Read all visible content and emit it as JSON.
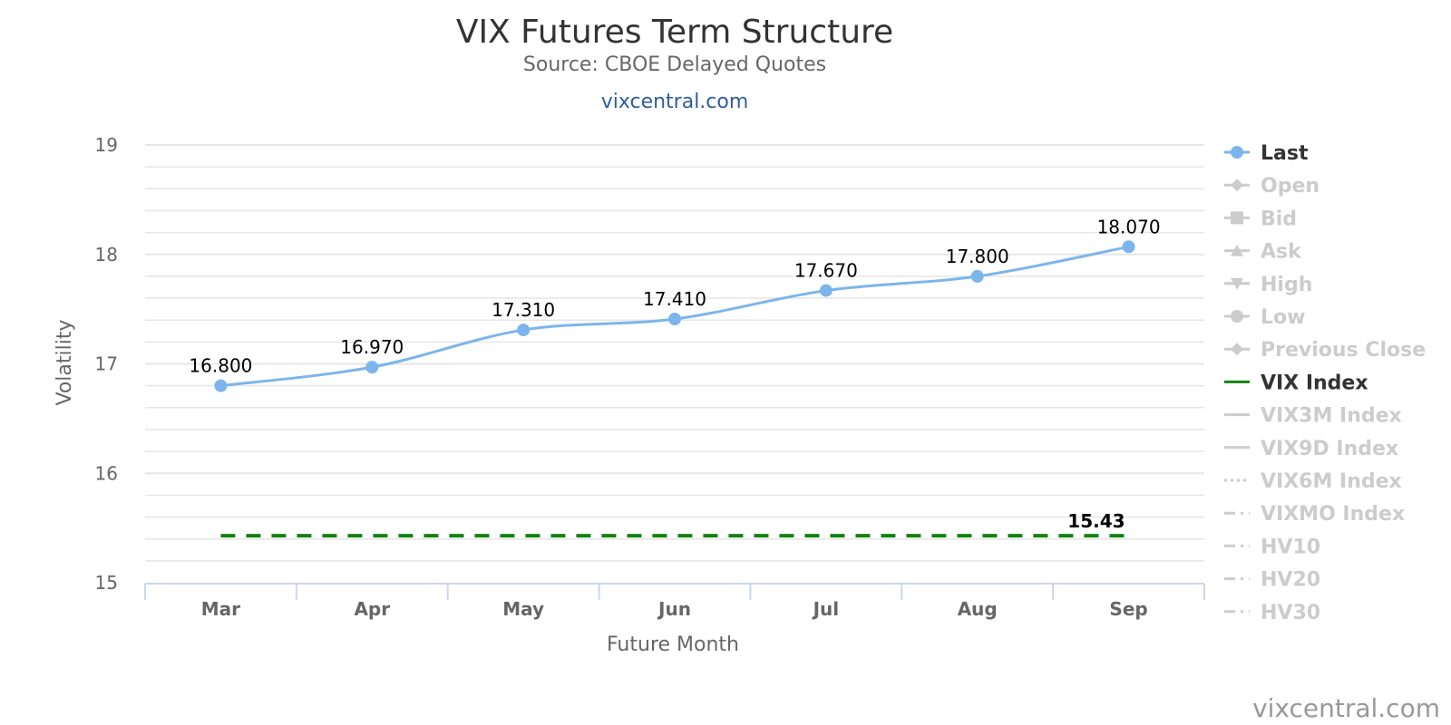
{
  "header": {
    "title": "VIX Futures Term Structure",
    "subtitle": "Source: CBOE Delayed Quotes",
    "site_link": "vixcentral.com"
  },
  "credit": "vixcentral.com",
  "chart_data": {
    "type": "line",
    "title": "VIX Futures Term Structure",
    "subtitle": "Source: CBOE Delayed Quotes",
    "xlabel": "Future Month",
    "ylabel": "Volatility",
    "categories": [
      "Mar",
      "Apr",
      "May",
      "Jun",
      "Jul",
      "Aug",
      "Sep"
    ],
    "ylim": [
      15,
      19
    ],
    "yticks": [
      15,
      16,
      17,
      18,
      19
    ],
    "grid": true,
    "legend_position": "right",
    "series": [
      {
        "name": "Last",
        "values": [
          16.8,
          16.97,
          17.31,
          17.41,
          17.67,
          17.8,
          18.07
        ],
        "labels": [
          "16.800",
          "16.970",
          "17.310",
          "17.410",
          "17.670",
          "17.800",
          "18.070"
        ],
        "color": "#7cb5ec",
        "smooth": true,
        "markers": true
      },
      {
        "name": "VIX Index",
        "value": 15.43,
        "label": "15.43",
        "color": "#128212",
        "dashed": true
      }
    ],
    "legend": [
      {
        "name": "Last",
        "symbol": "circle",
        "enabled": true,
        "color": "#7cb5ec"
      },
      {
        "name": "Open",
        "symbol": "diamond",
        "enabled": false
      },
      {
        "name": "Bid",
        "symbol": "square",
        "enabled": false
      },
      {
        "name": "Ask",
        "symbol": "triangle",
        "enabled": false
      },
      {
        "name": "High",
        "symbol": "triangle-down",
        "enabled": false
      },
      {
        "name": "Low",
        "symbol": "circle",
        "enabled": false
      },
      {
        "name": "Previous Close",
        "symbol": "diamond",
        "enabled": false
      },
      {
        "name": "VIX Index",
        "symbol": "line",
        "enabled": true,
        "color": "#128212"
      },
      {
        "name": "VIX3M Index",
        "symbol": "line",
        "enabled": false
      },
      {
        "name": "VIX9D Index",
        "symbol": "line",
        "enabled": false
      },
      {
        "name": "VIX6M Index",
        "symbol": "dotted",
        "enabled": false
      },
      {
        "name": "VIXMO Index",
        "symbol": "dashdot",
        "enabled": false
      },
      {
        "name": "HV10",
        "symbol": "dashdot",
        "enabled": false
      },
      {
        "name": "HV20",
        "symbol": "dashdot",
        "enabled": false
      },
      {
        "name": "HV30",
        "symbol": "dashdot",
        "enabled": false
      }
    ],
    "colors": {
      "disabled": "#cccccc",
      "legend_enabled_text": "#333333",
      "grid": "#e6e6e6",
      "axis": "#ccd6eb"
    }
  }
}
